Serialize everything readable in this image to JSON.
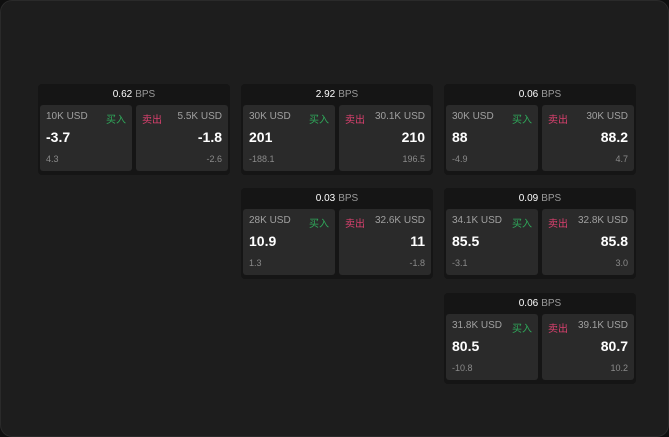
{
  "cards": [
    {
      "bps": "0.62",
      "unit": "BPS",
      "buy": {
        "size": "10K USD",
        "label": "买入",
        "price": "-3.7",
        "change": "4.3"
      },
      "sell": {
        "size": "5.5K USD",
        "label": "卖出",
        "price": "-1.8",
        "change": "-2.6"
      }
    },
    {
      "bps": "2.92",
      "unit": "BPS",
      "buy": {
        "size": "30K USD",
        "label": "买入",
        "price": "201",
        "change": "-188.1"
      },
      "sell": {
        "size": "30.1K USD",
        "label": "卖出",
        "price": "210",
        "change": "196.5"
      }
    },
    {
      "bps": "0.06",
      "unit": "BPS",
      "buy": {
        "size": "30K USD",
        "label": "买入",
        "price": "88",
        "change": "-4.9"
      },
      "sell": {
        "size": "30K USD",
        "label": "卖出",
        "price": "88.2",
        "change": "4.7"
      }
    },
    {
      "bps": "0.03",
      "unit": "BPS",
      "buy": {
        "size": "28K USD",
        "label": "买入",
        "price": "10.9",
        "change": "1.3"
      },
      "sell": {
        "size": "32.6K USD",
        "label": "卖出",
        "price": "11",
        "change": "-1.8"
      }
    },
    {
      "bps": "0.09",
      "unit": "BPS",
      "buy": {
        "size": "34.1K USD",
        "label": "买入",
        "price": "85.5",
        "change": "-3.1"
      },
      "sell": {
        "size": "32.8K USD",
        "label": "卖出",
        "price": "85.8",
        "change": "3.0"
      }
    },
    {
      "bps": "0.06",
      "unit": "BPS",
      "buy": {
        "size": "31.8K USD",
        "label": "买入",
        "price": "80.5",
        "change": "-10.8"
      },
      "sell": {
        "size": "39.1K USD",
        "label": "卖出",
        "price": "80.7",
        "change": "10.2"
      }
    }
  ],
  "colors": {
    "buy": "#2fa85a",
    "sell": "#d9406e"
  }
}
